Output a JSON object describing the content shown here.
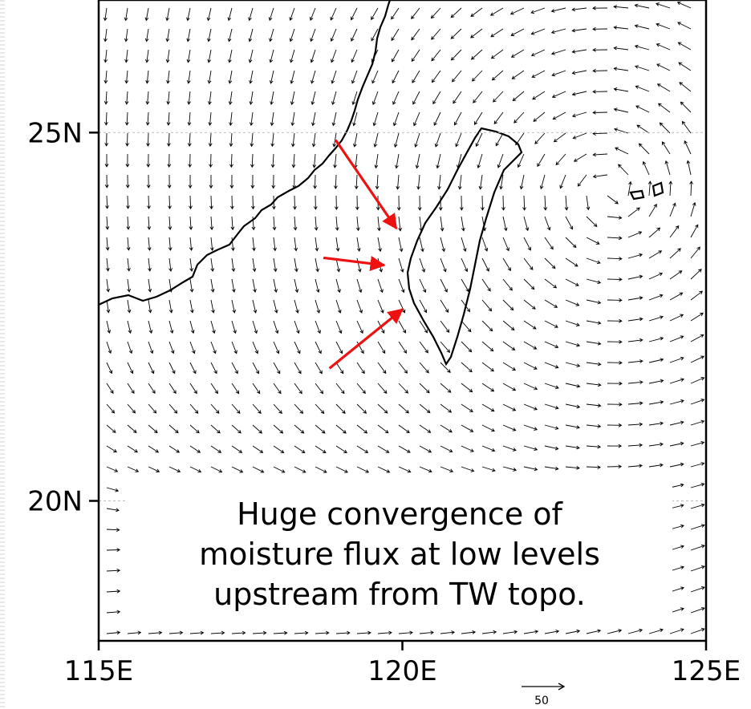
{
  "map": {
    "extent": {
      "lon_min": 115,
      "lon_max": 125,
      "lat_min": 18.1,
      "lat_max": 26.8
    },
    "x_ticks": [
      {
        "value": 115,
        "label": "115E"
      },
      {
        "value": 120,
        "label": "120E"
      },
      {
        "value": 125,
        "label": "125E"
      }
    ],
    "y_ticks": [
      {
        "value": 25,
        "label": "25N"
      },
      {
        "value": 20,
        "label": "20N"
      }
    ],
    "vector_scale_label": "50",
    "vector_color": "#000000",
    "annotation_color": "#ee1111",
    "annotations": [
      {
        "name": "arrow-from-north",
        "from": [
          118.9,
          24.9
        ],
        "to": [
          119.9,
          23.7
        ]
      },
      {
        "name": "arrow-from-west",
        "from": [
          118.7,
          23.3
        ],
        "to": [
          119.7,
          23.2
        ]
      },
      {
        "name": "arrow-from-southwest",
        "from": [
          118.8,
          21.8
        ],
        "to": [
          120.0,
          22.6
        ]
      }
    ]
  },
  "caption": {
    "lines": [
      "Huge convergence of",
      "moisture flux at low levels",
      "upstream from TW topo."
    ]
  }
}
